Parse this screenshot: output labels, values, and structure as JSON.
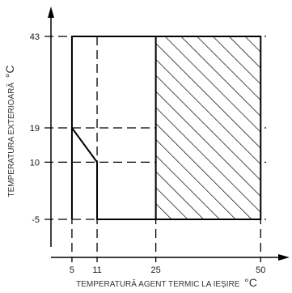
{
  "chart_data": {
    "type": "area",
    "xlabel": "TEMPERATURĂ AGENT TERMIC LA IEȘIRE",
    "ylabel": "TEMPERATURA EXTERIOARĂ",
    "unit": "°C",
    "x_ticks": [
      5,
      11,
      25,
      50
    ],
    "y_ticks": [
      43,
      19,
      10,
      -5
    ],
    "xlim": [
      0,
      51.3
    ],
    "ylim": [
      -5,
      43
    ],
    "operating_region": [
      [
        5,
        -5
      ],
      [
        5,
        19
      ],
      [
        11,
        10
      ],
      [
        11,
        -5
      ],
      [
        50,
        -5
      ],
      [
        50,
        43
      ],
      [
        5,
        43
      ]
    ],
    "hatched_region": {
      "x": [
        25,
        50
      ],
      "y": [
        -5,
        43
      ]
    }
  }
}
